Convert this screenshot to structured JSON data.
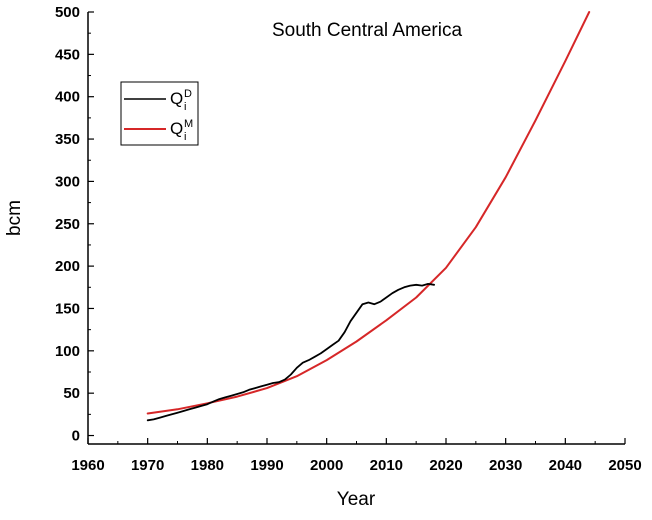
{
  "chart_data": {
    "type": "line",
    "title": "South Central America",
    "xlabel": "Year",
    "ylabel": "bcm",
    "xlim": [
      1960,
      2050
    ],
    "ylim": [
      -10,
      500
    ],
    "xticks": [
      1960,
      1970,
      1980,
      1990,
      2000,
      2010,
      2020,
      2030,
      2040,
      2050
    ],
    "yticks": [
      0,
      50,
      100,
      150,
      200,
      250,
      300,
      350,
      400,
      450,
      500
    ],
    "grid": false,
    "legend_position": "top-left",
    "series": [
      {
        "name": "Q",
        "name_superscript": "D",
        "name_subscript": "i",
        "color": "#000000",
        "x": [
          1970,
          1971,
          1972,
          1973,
          1974,
          1975,
          1976,
          1977,
          1978,
          1979,
          1980,
          1981,
          1982,
          1983,
          1984,
          1985,
          1986,
          1987,
          1988,
          1989,
          1990,
          1991,
          1992,
          1993,
          1994,
          1995,
          1996,
          1997,
          1998,
          1999,
          2000,
          2001,
          2002,
          2003,
          2004,
          2005,
          2006,
          2007,
          2008,
          2009,
          2010,
          2011,
          2012,
          2013,
          2014,
          2015,
          2016,
          2017,
          2018
        ],
        "values": [
          18,
          19,
          21,
          23,
          25,
          27,
          29,
          31,
          33,
          35,
          37,
          40,
          43,
          45,
          47,
          49,
          51,
          54,
          56,
          58,
          60,
          62,
          63,
          66,
          72,
          80,
          86,
          89,
          93,
          97,
          102,
          107,
          112,
          122,
          135,
          145,
          155,
          157,
          155,
          158,
          163,
          168,
          172,
          175,
          177,
          178,
          177,
          179,
          178
        ]
      },
      {
        "name": "Q",
        "name_superscript": "M",
        "name_subscript": "i",
        "color": "#d62728",
        "x": [
          1970,
          1975,
          1980,
          1985,
          1990,
          1995,
          2000,
          2005,
          2010,
          2015,
          2020,
          2025,
          2030,
          2035,
          2040,
          2044
        ],
        "values": [
          26,
          31,
          38,
          46,
          56,
          70,
          89,
          111,
          136,
          163,
          198,
          246,
          305,
          372,
          442,
          500
        ]
      }
    ]
  }
}
